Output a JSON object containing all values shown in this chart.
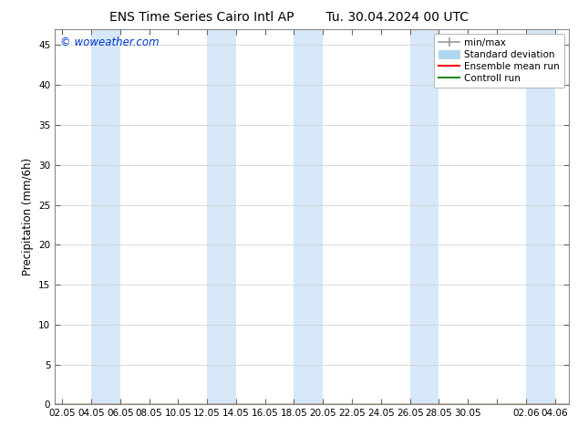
{
  "title_left": "ENS Time Series Cairo Intl AP",
  "title_right": "Tu. 30.04.2024 00 UTC",
  "ylabel": "Precipitation (mm/6h)",
  "watermark": "© woweather.com",
  "watermark_color": "#0033cc",
  "ylim": [
    0,
    47
  ],
  "yticks": [
    0,
    5,
    10,
    15,
    20,
    25,
    30,
    35,
    40,
    45
  ],
  "xtick_labels": [
    "02.05",
    "04.05",
    "06.05",
    "08.05",
    "10.05",
    "12.05",
    "14.05",
    "16.05",
    "18.05",
    "20.05",
    "22.05",
    "24.05",
    "26.05",
    "28.05",
    "30.05",
    "",
    "02.06",
    "04.06"
  ],
  "shade_color": "#d6e8f7",
  "background_color": "#ffffff",
  "plot_bg_color": "#ffffff",
  "title_fontsize": 10,
  "tick_fontsize": 7.5,
  "ylabel_fontsize": 8.5,
  "watermark_fontsize": 8.5,
  "legend_fontsize": 7.5
}
